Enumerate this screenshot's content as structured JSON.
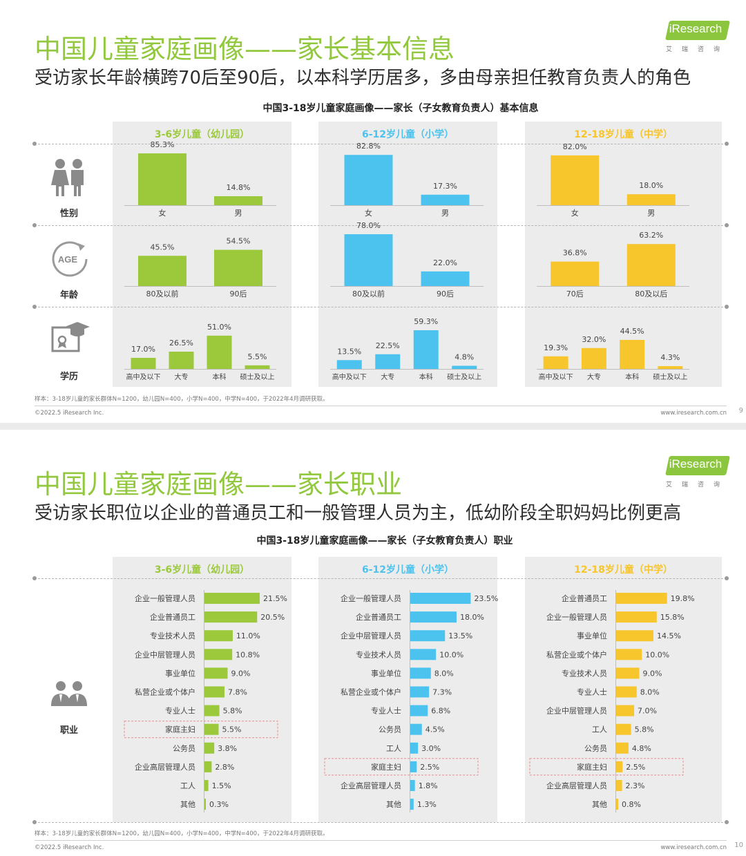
{
  "colors": {
    "kindergarten": "#9bc93b",
    "primary": "#4cc3ee",
    "middle": "#f7c52c",
    "title_green": "#92c83e",
    "highlight_box": "#e88c8c"
  },
  "icons": [
    "parents-icon",
    "age-icon",
    "diploma-icon",
    "workers-icon"
  ],
  "logo": {
    "text": "iResearch",
    "cn": "艾瑞咨询"
  },
  "slide1": {
    "title": "中国儿童家庭画像——家长基本信息",
    "subtitle": "受访家长年龄横跨70后至90后，以本科学历居多，多由母亲担任教育负责人的角色",
    "chart_title": "中国3-18岁儿童家庭画像——家长（子女教育负责人）基本信息",
    "row_labels": [
      "性别",
      "年龄",
      "学历"
    ],
    "footnote": "样本：3-18岁儿童的家长群体N=1200，幼儿园N=400，小学N=400，中学N=400，于2022年4月调研获取。",
    "copyright": "©2022.5 iResearch Inc.",
    "site": "www.iresearch.com.cn",
    "page": "9"
  },
  "slide2": {
    "title": "中国儿童家庭画像——家长职业",
    "subtitle": "受访家长职位以企业的普通员工和一般管理人员为主，低幼阶段全职妈妈比例更高",
    "chart_title": "中国3-18岁儿童家庭画像——家长（子女教育负责人）职业",
    "row_label": "职业",
    "footnote": "样本：3-18岁儿童的家长群体N=1200，幼儿园N=400，小学N=400，中学N=400，于2022年4月调研获取。",
    "copyright": "©2022.5 iResearch Inc.",
    "site": "www.iresearch.com.cn",
    "page": "10"
  },
  "chart_data": [
    {
      "type": "bar",
      "title": "中国3-18岁儿童家庭画像——家长（子女教育负责人）基本信息",
      "unit": "%",
      "panels": [
        {
          "name": "3-6岁儿童（幼儿园）",
          "color": "#9bc93b",
          "rows": [
            {
              "label": "性别",
              "categories": [
                "女",
                "男"
              ],
              "values": [
                85.3,
                14.8
              ]
            },
            {
              "label": "年龄",
              "categories": [
                "80及以前",
                "90后"
              ],
              "values": [
                45.5,
                54.5
              ]
            },
            {
              "label": "学历",
              "categories": [
                "高中及以下",
                "大专",
                "本科",
                "硕士及以上"
              ],
              "values": [
                17.0,
                26.5,
                51.0,
                5.5
              ]
            }
          ]
        },
        {
          "name": "6-12岁儿童（小学）",
          "color": "#4cc3ee",
          "rows": [
            {
              "label": "性别",
              "categories": [
                "女",
                "男"
              ],
              "values": [
                82.8,
                17.3
              ]
            },
            {
              "label": "年龄",
              "categories": [
                "80及以前",
                "90后"
              ],
              "values": [
                78.0,
                22.0
              ]
            },
            {
              "label": "学历",
              "categories": [
                "高中及以下",
                "大专",
                "本科",
                "硕士及以上"
              ],
              "values": [
                13.5,
                22.5,
                59.3,
                4.8
              ]
            }
          ]
        },
        {
          "name": "12-18岁儿童（中学）",
          "color": "#f7c52c",
          "rows": [
            {
              "label": "性别",
              "categories": [
                "女",
                "男"
              ],
              "values": [
                82.0,
                18.0
              ]
            },
            {
              "label": "年龄",
              "categories": [
                "70后",
                "80及以后"
              ],
              "values": [
                36.8,
                63.2
              ]
            },
            {
              "label": "学历",
              "categories": [
                "高中及以下",
                "大专",
                "本科",
                "硕士及以上"
              ],
              "values": [
                19.3,
                32.0,
                44.5,
                4.3
              ]
            }
          ]
        }
      ]
    },
    {
      "type": "bar",
      "orientation": "horizontal",
      "title": "中国3-18岁儿童家庭画像——家长（子女教育负责人）职业",
      "unit": "%",
      "highlight": "家庭主妇",
      "panels": [
        {
          "name": "3-6岁儿童（幼儿园）",
          "color": "#9bc93b",
          "categories": [
            "企业一般管理人员",
            "企业普通员工",
            "专业技术人员",
            "企业中层管理人员",
            "事业单位",
            "私营企业或个体户",
            "专业人士",
            "家庭主妇",
            "公务员",
            "企业高层管理人员",
            "工人",
            "其他"
          ],
          "values": [
            21.5,
            20.5,
            11.0,
            10.8,
            9.0,
            7.8,
            5.8,
            5.5,
            3.8,
            2.8,
            1.5,
            0.3
          ]
        },
        {
          "name": "6-12岁儿童（小学）",
          "color": "#4cc3ee",
          "categories": [
            "企业一般管理人员",
            "企业普通员工",
            "企业中层管理人员",
            "专业技术人员",
            "事业单位",
            "私营企业或个体户",
            "专业人士",
            "公务员",
            "工人",
            "家庭主妇",
            "企业高层管理人员",
            "其他"
          ],
          "values": [
            23.5,
            18.0,
            13.5,
            10.0,
            8.0,
            7.3,
            6.8,
            4.5,
            3.0,
            2.5,
            1.8,
            1.3
          ]
        },
        {
          "name": "12-18岁儿童（中学）",
          "color": "#f7c52c",
          "categories": [
            "企业普通员工",
            "企业一般管理人员",
            "事业单位",
            "私营企业或个体户",
            "专业技术人员",
            "专业人士",
            "企业中层管理人员",
            "工人",
            "公务员",
            "家庭主妇",
            "企业高层管理人员",
            "其他"
          ],
          "values": [
            19.8,
            15.8,
            14.5,
            10.0,
            9.0,
            8.0,
            7.0,
            5.8,
            4.8,
            2.5,
            2.3,
            0.8
          ]
        }
      ]
    }
  ]
}
